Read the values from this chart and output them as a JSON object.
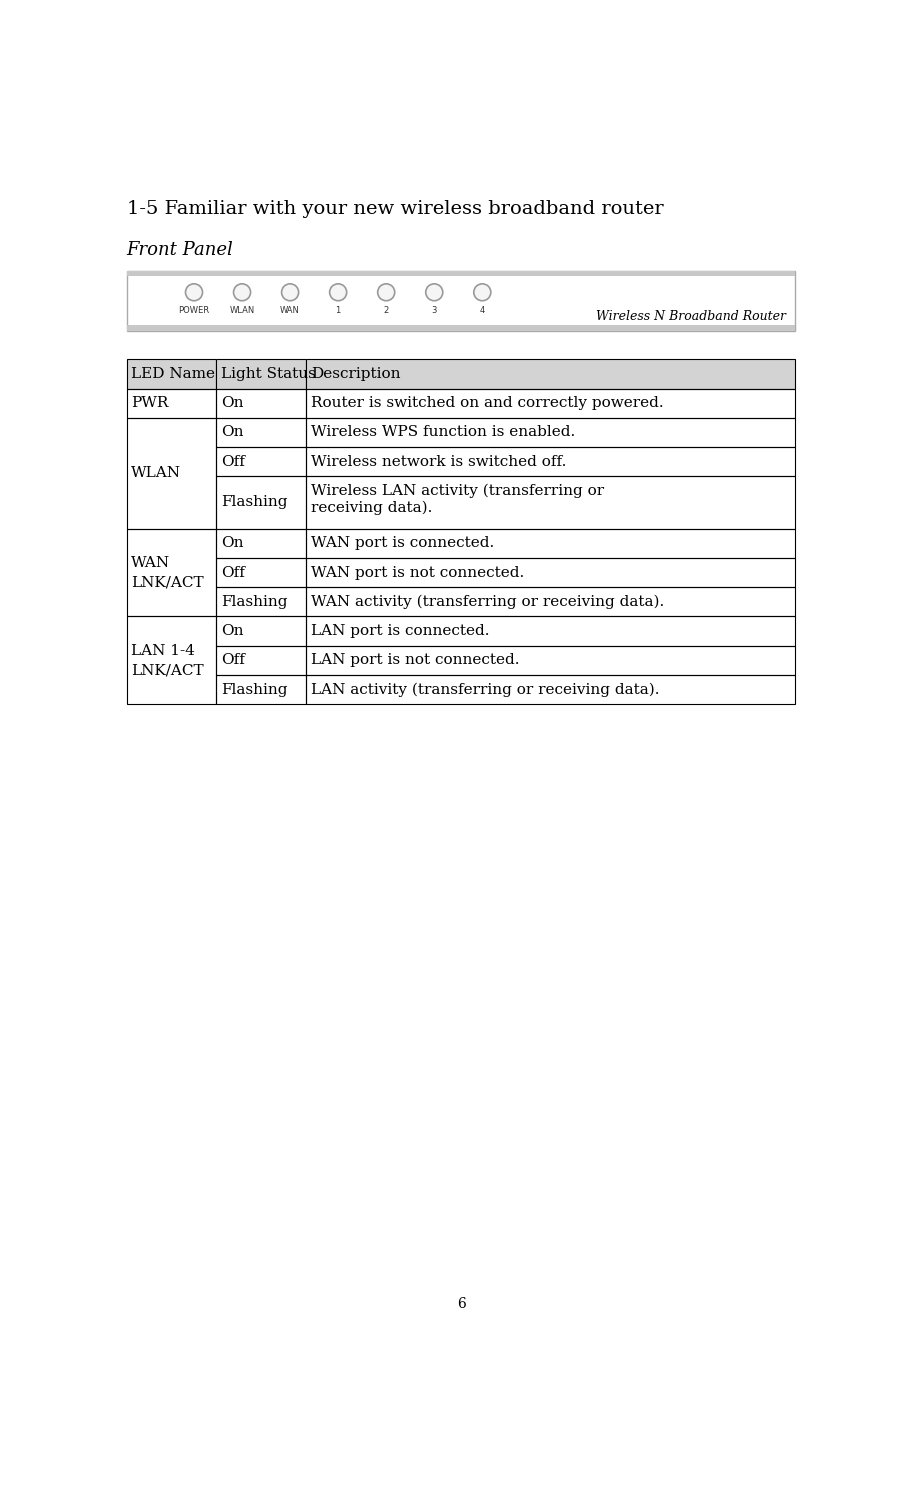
{
  "page_title": "1-5 Familiar with your new wireless broadband router",
  "section_title": "Front Panel",
  "router_label": "Wireless N Broadband Router",
  "led_labels": [
    "POWER",
    "WLAN",
    "WAN",
    "1",
    "2",
    "3",
    "4"
  ],
  "table_header": [
    "LED Name",
    "Light Status",
    "Description"
  ],
  "background_color": "#ffffff",
  "table_border_color": "#000000",
  "header_bg_color": "#d3d3d3",
  "page_number": "6",
  "font_size_title": 14,
  "font_size_section": 13,
  "font_size_table": 11,
  "font_size_router": 9,
  "font_size_page": 10
}
